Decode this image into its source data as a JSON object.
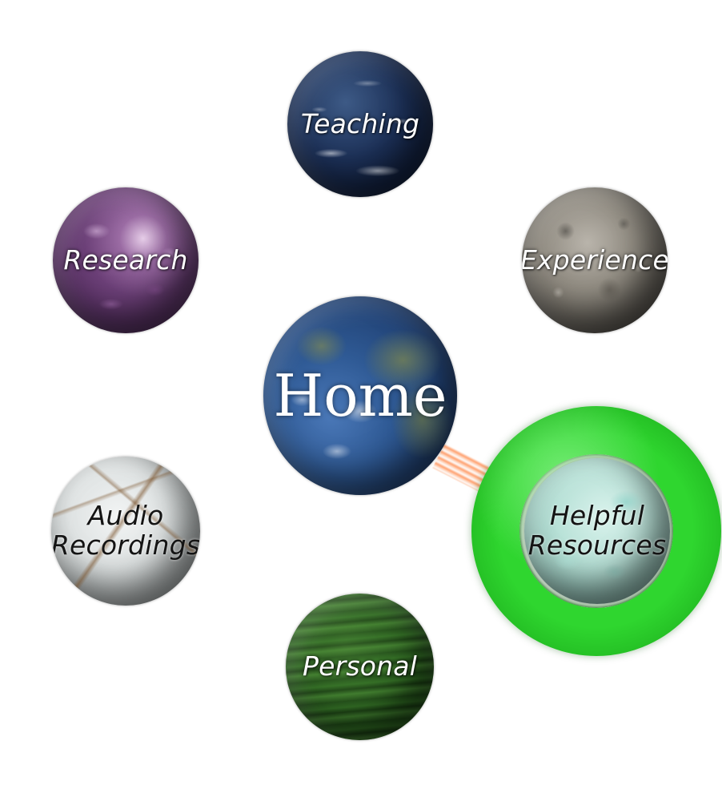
{
  "nav": {
    "home": "Home",
    "teaching": "Teaching",
    "research": "Research",
    "experience": "Experience",
    "audio_line1": "Audio",
    "audio_line2": "Recordings",
    "helpful_line1": "Helpful",
    "helpful_line2": "Resources",
    "personal": "Personal"
  },
  "state": {
    "hovered": "Helpful Resources"
  },
  "colors": {
    "highlight_ring": "#2fd62f",
    "beam": "#ff8c50",
    "background": "#ffffff"
  }
}
